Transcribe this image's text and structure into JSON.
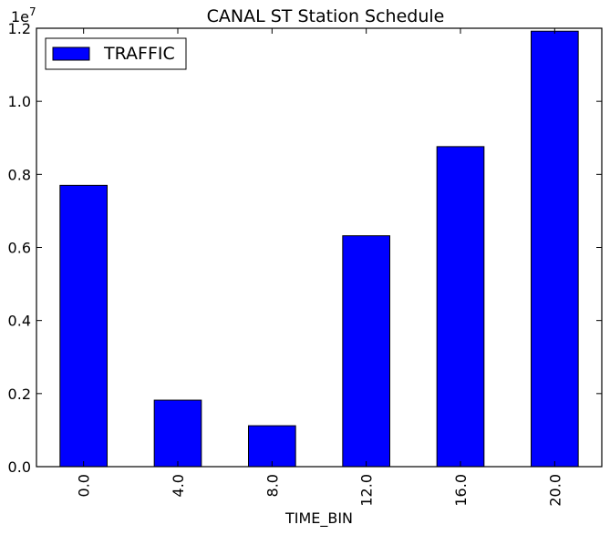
{
  "chart_data": {
    "type": "bar",
    "title": "CANAL ST Station Schedule",
    "xlabel": "TIME_BIN",
    "ylabel": "",
    "y_offset_label": "1e7",
    "categories": [
      "0.0",
      "4.0",
      "8.0",
      "12.0",
      "16.0",
      "20.0"
    ],
    "series": [
      {
        "name": "TRAFFIC",
        "values": [
          7700000,
          1820000,
          1120000,
          6320000,
          8760000,
          11920000
        ],
        "color": "#0000ff"
      }
    ],
    "ylim": [
      0,
      12000000
    ],
    "y_ticks": [
      0,
      2000000,
      4000000,
      6000000,
      8000000,
      10000000,
      12000000
    ],
    "y_tick_labels": [
      "0.0",
      "0.2",
      "0.4",
      "0.6",
      "0.8",
      "1.0",
      "1.2"
    ],
    "grid": false,
    "legend_position": "top-left"
  }
}
